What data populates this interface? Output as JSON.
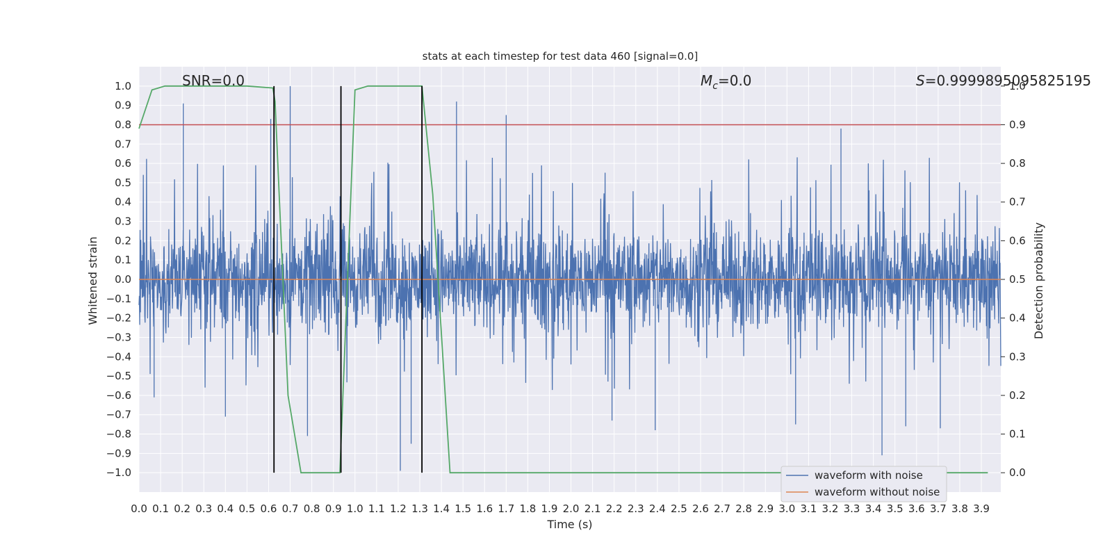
{
  "chart_data": {
    "type": "line",
    "title": "stats at each timestep for test data 460 [signal=0.0]",
    "xlabel": "Time (s)",
    "ylabel_left": "Whitened strain",
    "ylabel_right": "Detection probability",
    "xlim": [
      0.0,
      3.99
    ],
    "ylim_left": [
      -1.1,
      1.1
    ],
    "ylim_right": [
      -0.05,
      1.05
    ],
    "x_ticks": [
      "0.0",
      "0.1",
      "0.2",
      "0.3",
      "0.4",
      "0.5",
      "0.6",
      "0.7",
      "0.8",
      "0.9",
      "1.0",
      "1.1",
      "1.2",
      "1.3",
      "1.4",
      "1.5",
      "1.6",
      "1.7",
      "1.8",
      "1.9",
      "2.0",
      "2.1",
      "2.2",
      "2.3",
      "2.4",
      "2.5",
      "2.6",
      "2.7",
      "2.8",
      "2.9",
      "3.0",
      "3.1",
      "3.2",
      "3.3",
      "3.4",
      "3.5",
      "3.6",
      "3.7",
      "3.8",
      "3.9"
    ],
    "y_ticks_left": [
      "1.0",
      "0.9",
      "0.8",
      "0.7",
      "0.6",
      "0.5",
      "0.4",
      "0.3",
      "0.2",
      "0.1",
      "0.0",
      "−0.1",
      "−0.2",
      "−0.3",
      "−0.4",
      "−0.5",
      "−0.6",
      "−0.7",
      "−0.8",
      "−0.9",
      "−1.0"
    ],
    "y_ticks_right": [
      "1.0",
      "0.9",
      "0.8",
      "0.7",
      "0.6",
      "0.5",
      "0.4",
      "0.3",
      "0.2",
      "0.1",
      "0.0"
    ],
    "annotations": {
      "snr": "SNR=0.0",
      "mc_symbol": "M",
      "mc_sub": "c",
      "mc_value": "=0.0",
      "s_symbol": "S",
      "s_value": "=0.9999895095825195"
    },
    "legend": {
      "position": "lower-right",
      "entries": [
        "waveform with noise",
        "waveform without noise"
      ]
    },
    "colors": {
      "noise": "#4c72b0",
      "clean": "#dd8452",
      "probability": "#55a868",
      "threshold": "#c44e52",
      "markers": "#000000",
      "background": "#eaeaf2",
      "grid": "#ffffff"
    },
    "series": [
      {
        "name": "waveform with noise",
        "axis": "left",
        "style": "noise",
        "envelope_high": 0.55,
        "envelope_low": -0.5,
        "spikes": [
          {
            "x": 0.205,
            "y": 0.91
          },
          {
            "x": 0.61,
            "y": 0.83
          },
          {
            "x": 0.7,
            "y": 1.0
          },
          {
            "x": 1.47,
            "y": 0.92
          },
          {
            "x": 1.7,
            "y": 0.85
          },
          {
            "x": 3.25,
            "y": 0.78
          },
          {
            "x": 1.31,
            "y": 0.7
          },
          {
            "x": 0.07,
            "y": -0.61
          },
          {
            "x": 0.78,
            "y": -0.81
          },
          {
            "x": 1.21,
            "y": -0.99
          },
          {
            "x": 1.26,
            "y": -0.85
          },
          {
            "x": 2.39,
            "y": -0.78
          },
          {
            "x": 3.44,
            "y": -0.91
          },
          {
            "x": 3.55,
            "y": -0.76
          },
          {
            "x": 3.71,
            "y": -0.77
          },
          {
            "x": 0.4,
            "y": -0.71
          },
          {
            "x": 2.19,
            "y": -0.73
          },
          {
            "x": 3.04,
            "y": -0.75
          }
        ]
      },
      {
        "name": "waveform without noise",
        "axis": "left",
        "style": "clean",
        "x": [
          0.0,
          3.99
        ],
        "y": [
          0.0,
          0.0
        ]
      },
      {
        "name": "detection probability",
        "axis": "right",
        "style": "probability",
        "x": [
          0.0,
          0.06,
          0.12,
          0.25,
          0.5,
          0.62,
          0.63,
          0.69,
          0.75,
          0.8,
          0.93,
          1.0,
          1.06,
          1.12,
          1.3,
          1.31,
          1.36,
          1.44,
          1.5,
          2.0,
          3.0,
          3.93
        ],
        "y": [
          0.89,
          0.99,
          1.0,
          1.0,
          1.0,
          0.995,
          0.96,
          0.2,
          0.0,
          0.0,
          0.0,
          0.99,
          1.0,
          1.0,
          1.0,
          1.0,
          0.72,
          0.0,
          0.0,
          0.0,
          0.0,
          0.0
        ]
      }
    ],
    "threshold_right": 0.9,
    "vertical_markers": [
      0.625,
      0.935,
      1.31
    ]
  }
}
